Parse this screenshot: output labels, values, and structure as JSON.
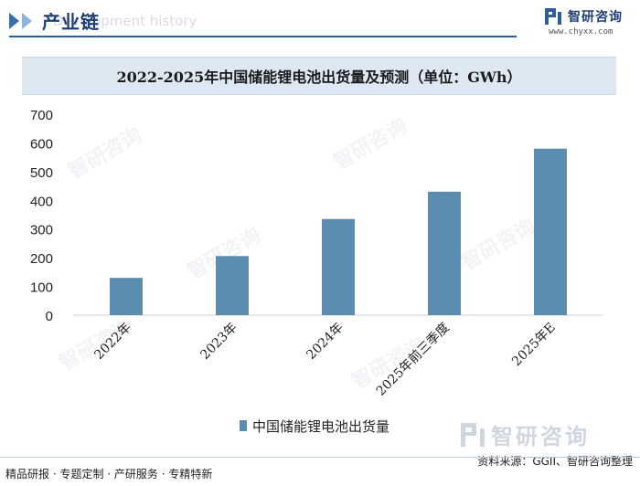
{
  "header": {
    "title": "产业链",
    "faint_text": "Development history",
    "brand_name": "智研咨询",
    "brand_url": "www.chyxx.com"
  },
  "chart_data": {
    "type": "bar",
    "title": "2022-2025年中国储能锂电池出货量及预测（单位：GWh）",
    "categories": [
      "2022年",
      "2023年",
      "2024年",
      "2025年前三季度",
      "2025年E"
    ],
    "series": [
      {
        "name": "中国储能锂电池出货量",
        "values": [
          130,
          206,
          335,
          430,
          580
        ]
      }
    ],
    "ylim": [
      0,
      700
    ],
    "yticks": [
      0,
      100,
      200,
      300,
      400,
      500,
      600,
      700
    ],
    "grid": false,
    "legend": "bottom",
    "bar_color": "#5b8db1"
  },
  "watermark": {
    "text": "智研咨询"
  },
  "footer": {
    "left": "精品研报 · 专题定制 · 产研服务 · 专精特新",
    "source": "资料来源：GGII、智研咨询整理"
  }
}
